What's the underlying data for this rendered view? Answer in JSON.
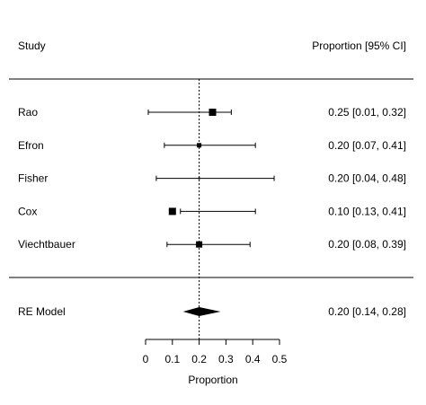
{
  "chart_data": {
    "type": "forest",
    "header": {
      "study_label": "Study",
      "estimate_label": "Proportion [95% CI]"
    },
    "studies": [
      {
        "name": "Rao",
        "estimate": 0.25,
        "ci": [
          0.01,
          0.32
        ],
        "label": "0.25 [0.01, 0.32]",
        "weight_marker": "large"
      },
      {
        "name": "Efron",
        "estimate": 0.2,
        "ci": [
          0.07,
          0.41
        ],
        "label": "0.20 [0.07, 0.41]",
        "weight_marker": "small"
      },
      {
        "name": "Fisher",
        "estimate": 0.2,
        "ci": [
          0.04,
          0.48
        ],
        "label": "0.20 [0.04, 0.48]",
        "weight_marker": "tiny"
      },
      {
        "name": "Cox",
        "estimate": 0.1,
        "ci": [
          0.13,
          0.41
        ],
        "label": "0.10 [0.13, 0.41]",
        "weight_marker": "large"
      },
      {
        "name": "Viechtbauer",
        "estimate": 0.2,
        "ci": [
          0.08,
          0.39
        ],
        "label": "0.20 [0.08, 0.39]",
        "weight_marker": "medium"
      }
    ],
    "summary": {
      "name": "RE Model",
      "estimate": 0.2,
      "ci": [
        0.14,
        0.28
      ],
      "label": "0.20 [0.14, 0.28]"
    },
    "reference_line": 0.2,
    "xaxis": {
      "label": "Proportion",
      "ticks": [
        0,
        0.1,
        0.2,
        0.3,
        0.4,
        0.5
      ],
      "tick_labels": [
        "0",
        "0.1",
        "0.2",
        "0.3",
        "0.4",
        "0.5"
      ],
      "range": [
        0,
        0.5
      ]
    }
  }
}
